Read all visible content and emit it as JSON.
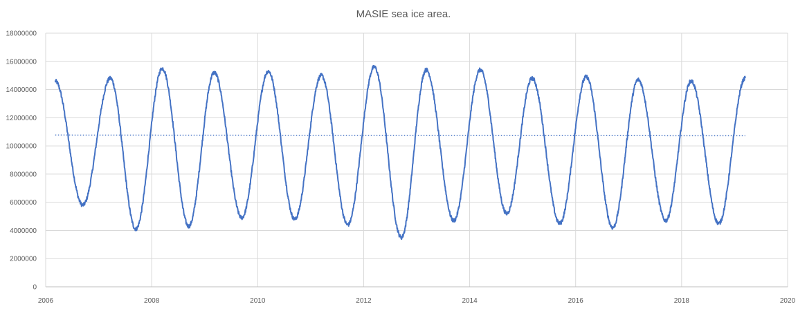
{
  "chart_data": {
    "type": "line",
    "title": "MASIE sea ice area.",
    "xlabel": "",
    "ylabel": "",
    "xlim": [
      2006,
      2020
    ],
    "ylim": [
      0,
      18000000
    ],
    "x_ticks": [
      "2006",
      "2008",
      "2010",
      "2012",
      "2014",
      "2016",
      "2018",
      "2020"
    ],
    "y_ticks": [
      "0",
      "2000000",
      "4000000",
      "6000000",
      "8000000",
      "10000000",
      "12000000",
      "14000000",
      "16000000",
      "18000000"
    ],
    "grid": true,
    "legend": "none",
    "colors": {
      "series": "#4472c4",
      "grid": "#d9d9d9",
      "axis_text": "#595959"
    },
    "series": [
      {
        "x": [
          2006.18,
          2006.7,
          2007.22,
          2007.7,
          2008.2,
          2008.7,
          2009.18,
          2009.7,
          2010.2,
          2010.7,
          2011.2,
          2011.7,
          2012.2,
          2012.71,
          2013.18,
          2013.7,
          2014.2,
          2014.7,
          2015.18,
          2015.7,
          2016.2,
          2016.7,
          2017.18,
          2017.7,
          2018.18,
          2018.7,
          2019.2
        ],
        "y": [
          14600000,
          5800000,
          14800000,
          4100000,
          15500000,
          4300000,
          15200000,
          4900000,
          15300000,
          4800000,
          15000000,
          4400000,
          15600000,
          3500000,
          15400000,
          4700000,
          15400000,
          5200000,
          14800000,
          4500000,
          14900000,
          4200000,
          14700000,
          4700000,
          14600000,
          4500000,
          14800000
        ]
      },
      {
        "type": "linear-trend",
        "x": [
          2006.18,
          2019.2
        ],
        "y": [
          10770000,
          10720000
        ]
      }
    ]
  }
}
